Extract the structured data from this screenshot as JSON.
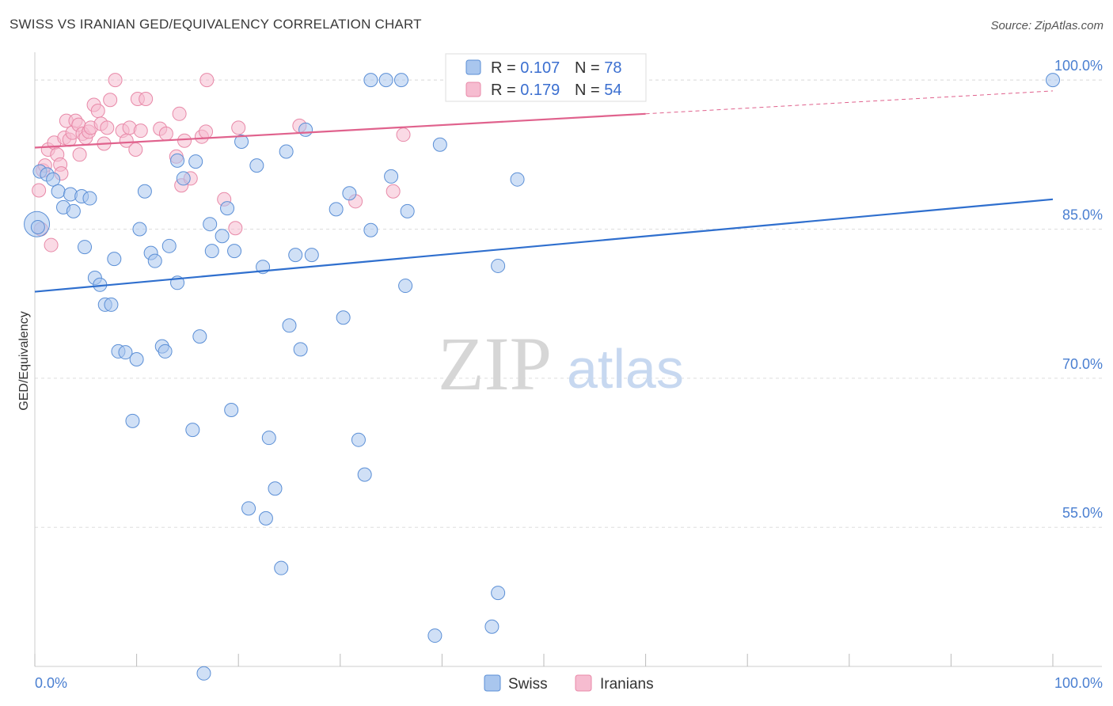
{
  "title": "SWISS VS IRANIAN GED/EQUIVALENCY CORRELATION CHART",
  "source": "Source: ZipAtlas.com",
  "watermark": {
    "zip": "ZIP",
    "atlas": "atlas"
  },
  "legend_top": {
    "rows": [
      {
        "r_label": "R = ",
        "r_value": "0.107",
        "n_label": "N = ",
        "n_value": "78"
      },
      {
        "r_label": "R = ",
        "r_value": "0.179",
        "n_label": "N = ",
        "n_value": "54"
      }
    ]
  },
  "legend_bottom": {
    "swiss": "Swiss",
    "iranians": "Iranians"
  },
  "colors": {
    "swiss_fill": "#a9c6ee",
    "swiss_stroke": "#5b8fd6",
    "swiss_line": "#2f6fce",
    "iran_fill": "#f6bcd0",
    "iran_stroke": "#e889a8",
    "iran_line": "#e0628d",
    "tick_text": "#4a7fd1",
    "grid": "#dddddd"
  },
  "chart_data": {
    "type": "scatter",
    "title": "SWISS VS IRANIAN GED/EQUIVALENCY CORRELATION CHART",
    "xlabel": "",
    "ylabel": "GED/Equivalency",
    "xlim": [
      0,
      100
    ],
    "ylim": [
      41,
      102
    ],
    "x_tick_labels": [
      "0.0%",
      "100.0%"
    ],
    "y_ticks": [
      55,
      70,
      85,
      100
    ],
    "y_tick_labels": [
      "55.0%",
      "70.0%",
      "85.0%",
      "100.0%"
    ],
    "grid": true,
    "series": [
      {
        "name": "Swiss",
        "R": 0.107,
        "N": 78,
        "trend": {
          "x0": 0,
          "y0": 78.7,
          "x1": 100,
          "y1": 88.0
        },
        "points": [
          [
            0.2,
            85.5
          ],
          [
            0.5,
            90.8
          ],
          [
            1.2,
            90.5
          ],
          [
            1.8,
            90.0
          ],
          [
            2.3,
            88.8
          ],
          [
            2.8,
            87.2
          ],
          [
            3.5,
            88.5
          ],
          [
            3.8,
            86.8
          ],
          [
            4.6,
            88.3
          ],
          [
            5.4,
            88.1
          ],
          [
            4.9,
            83.2
          ],
          [
            5.9,
            80.1
          ],
          [
            6.4,
            79.4
          ],
          [
            6.9,
            77.4
          ],
          [
            7.5,
            77.4
          ],
          [
            7.8,
            82.0
          ],
          [
            8.2,
            72.7
          ],
          [
            8.9,
            72.6
          ],
          [
            9.6,
            65.7
          ],
          [
            10.0,
            71.9
          ],
          [
            10.3,
            85.0
          ],
          [
            10.8,
            88.8
          ],
          [
            11.4,
            82.6
          ],
          [
            11.8,
            81.8
          ],
          [
            12.5,
            73.2
          ],
          [
            12.8,
            72.7
          ],
          [
            13.2,
            83.3
          ],
          [
            14.0,
            79.6
          ],
          [
            14.0,
            91.9
          ],
          [
            14.6,
            90.1
          ],
          [
            15.5,
            64.8
          ],
          [
            15.8,
            91.8
          ],
          [
            16.2,
            74.2
          ],
          [
            16.6,
            40.3
          ],
          [
            17.2,
            85.5
          ],
          [
            17.4,
            82.8
          ],
          [
            18.4,
            84.3
          ],
          [
            18.9,
            87.1
          ],
          [
            19.3,
            66.8
          ],
          [
            19.6,
            82.8
          ],
          [
            20.3,
            93.8
          ],
          [
            21.0,
            56.9
          ],
          [
            21.8,
            91.4
          ],
          [
            22.4,
            81.2
          ],
          [
            22.7,
            55.9
          ],
          [
            23.0,
            64.0
          ],
          [
            23.6,
            58.9
          ],
          [
            24.2,
            50.9
          ],
          [
            24.7,
            92.8
          ],
          [
            25.0,
            75.3
          ],
          [
            25.6,
            82.4
          ],
          [
            26.1,
            72.9
          ],
          [
            26.6,
            95.0
          ],
          [
            27.2,
            82.4
          ],
          [
            29.6,
            87.0
          ],
          [
            30.3,
            76.1
          ],
          [
            30.9,
            88.6
          ],
          [
            31.8,
            63.8
          ],
          [
            32.4,
            60.3
          ],
          [
            33.0,
            84.9
          ],
          [
            33.0,
            100.0
          ],
          [
            34.5,
            100.0
          ],
          [
            35.0,
            90.3
          ],
          [
            36.0,
            100.0
          ],
          [
            36.4,
            79.3
          ],
          [
            36.6,
            86.8
          ],
          [
            39.3,
            44.1
          ],
          [
            39.8,
            93.5
          ],
          [
            41.1,
            100.0
          ],
          [
            44.9,
            45.0
          ],
          [
            45.5,
            48.4
          ],
          [
            45.5,
            81.3
          ],
          [
            47.4,
            90.0
          ],
          [
            50.4,
            100.0
          ],
          [
            52.6,
            100.0
          ],
          [
            52.0,
            98.8
          ],
          [
            100.0,
            100.0
          ],
          [
            0.3,
            85.2
          ]
        ]
      },
      {
        "name": "Iranians",
        "R": 0.179,
        "N": 54,
        "trend": {
          "x0": 0,
          "y0": 93.2,
          "x1": 60,
          "y1": 96.6,
          "dash_x1": 100,
          "dash_y1": 98.9
        },
        "points": [
          [
            0.4,
            88.9
          ],
          [
            0.6,
            85.0
          ],
          [
            0.8,
            90.9
          ],
          [
            1.0,
            91.4
          ],
          [
            1.3,
            93.0
          ],
          [
            1.6,
            83.4
          ],
          [
            1.9,
            93.7
          ],
          [
            2.2,
            92.5
          ],
          [
            2.5,
            91.5
          ],
          [
            2.6,
            90.6
          ],
          [
            2.9,
            94.2
          ],
          [
            3.1,
            95.9
          ],
          [
            3.4,
            94.0
          ],
          [
            3.7,
            94.7
          ],
          [
            4.0,
            95.9
          ],
          [
            4.3,
            95.5
          ],
          [
            4.4,
            92.5
          ],
          [
            4.7,
            94.6
          ],
          [
            5.0,
            94.2
          ],
          [
            5.3,
            94.8
          ],
          [
            5.5,
            95.2
          ],
          [
            5.8,
            97.5
          ],
          [
            6.2,
            96.9
          ],
          [
            6.5,
            95.6
          ],
          [
            6.8,
            93.6
          ],
          [
            7.1,
            95.2
          ],
          [
            7.4,
            98.0
          ],
          [
            7.9,
            100.0
          ],
          [
            8.6,
            94.9
          ],
          [
            9.0,
            93.9
          ],
          [
            9.3,
            95.2
          ],
          [
            9.9,
            93.0
          ],
          [
            10.1,
            98.1
          ],
          [
            10.4,
            94.9
          ],
          [
            10.9,
            98.1
          ],
          [
            12.3,
            95.1
          ],
          [
            12.9,
            94.6
          ],
          [
            13.9,
            92.3
          ],
          [
            14.2,
            96.6
          ],
          [
            14.4,
            89.4
          ],
          [
            14.7,
            93.9
          ],
          [
            15.3,
            90.1
          ],
          [
            16.4,
            94.3
          ],
          [
            16.8,
            94.8
          ],
          [
            16.9,
            100.0
          ],
          [
            18.6,
            88.0
          ],
          [
            19.7,
            85.1
          ],
          [
            20.0,
            95.2
          ],
          [
            26.0,
            95.4
          ],
          [
            31.5,
            87.8
          ],
          [
            35.2,
            88.8
          ],
          [
            36.2,
            94.5
          ],
          [
            52.2,
            98.6
          ],
          [
            55.7,
            100.0
          ]
        ]
      }
    ]
  }
}
